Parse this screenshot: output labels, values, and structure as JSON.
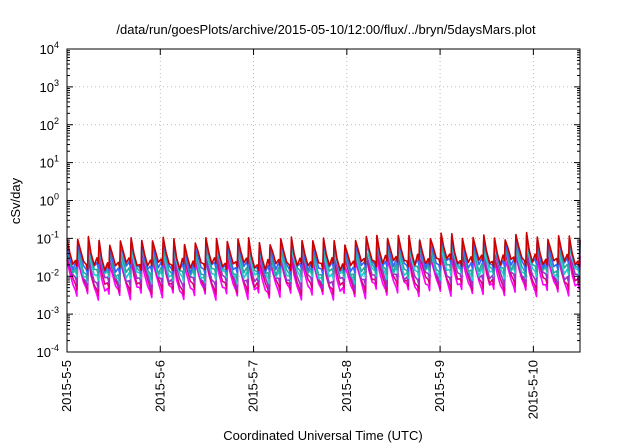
{
  "chart_data": {
    "type": "line",
    "title": "/data/run/goesPlots/archive/2015-05-10/12:00/flux/../bryn/5daysMars.plot",
    "xlabel": "Coordinated Universal Time (UTC)",
    "ylabel": "cSv/day",
    "yscale": "log",
    "ylim": [
      0.0001,
      10000
    ],
    "yticks": [
      {
        "base": "10",
        "exp": "-4",
        "value": 0.0001
      },
      {
        "base": "10",
        "exp": "-3",
        "value": 0.001
      },
      {
        "base": "10",
        "exp": "-2",
        "value": 0.01
      },
      {
        "base": "10",
        "exp": "-1",
        "value": 0.1
      },
      {
        "base": "10",
        "exp": "0",
        "value": 1
      },
      {
        "base": "10",
        "exp": "1",
        "value": 10
      },
      {
        "base": "10",
        "exp": "2",
        "value": 100
      },
      {
        "base": "10",
        "exp": "3",
        "value": 1000
      },
      {
        "base": "10",
        "exp": "4",
        "value": 10000
      }
    ],
    "xlim": [
      "2015-05-05 00:00",
      "2015-05-10 12:00"
    ],
    "xticks": [
      {
        "label": "2015-5-5",
        "date": "2015-05-05"
      },
      {
        "label": "2015-5-6",
        "date": "2015-05-06"
      },
      {
        "label": "2015-5-7",
        "date": "2015-05-07"
      },
      {
        "label": "2015-5-8",
        "date": "2015-05-08"
      },
      {
        "label": "2015-5-9",
        "date": "2015-05-09"
      },
      {
        "label": "2015-5-10",
        "date": "2015-05-10"
      }
    ],
    "grid": true,
    "pattern": {
      "cycle_hours": 2.75,
      "cycles_per_day": 8.73,
      "note_range": "values oscillate between about 0.001 and 0.1 cSv/day"
    },
    "series": [
      {
        "color": "#ff00ff",
        "peak": 0.025,
        "trough": 0.003
      },
      {
        "color": "#dd0077",
        "peak": 0.032,
        "trough": 0.004
      },
      {
        "color": "#9933cc",
        "peak": 0.04,
        "trough": 0.0055
      },
      {
        "color": "#22cccc",
        "peak": 0.05,
        "trough": 0.008
      },
      {
        "color": "#2aa7a0",
        "peak": 0.06,
        "trough": 0.01
      },
      {
        "color": "#3366ff",
        "peak": 0.075,
        "trough": 0.014
      },
      {
        "color": "#cc0000",
        "peak": 0.09,
        "trough": 0.018
      }
    ]
  }
}
